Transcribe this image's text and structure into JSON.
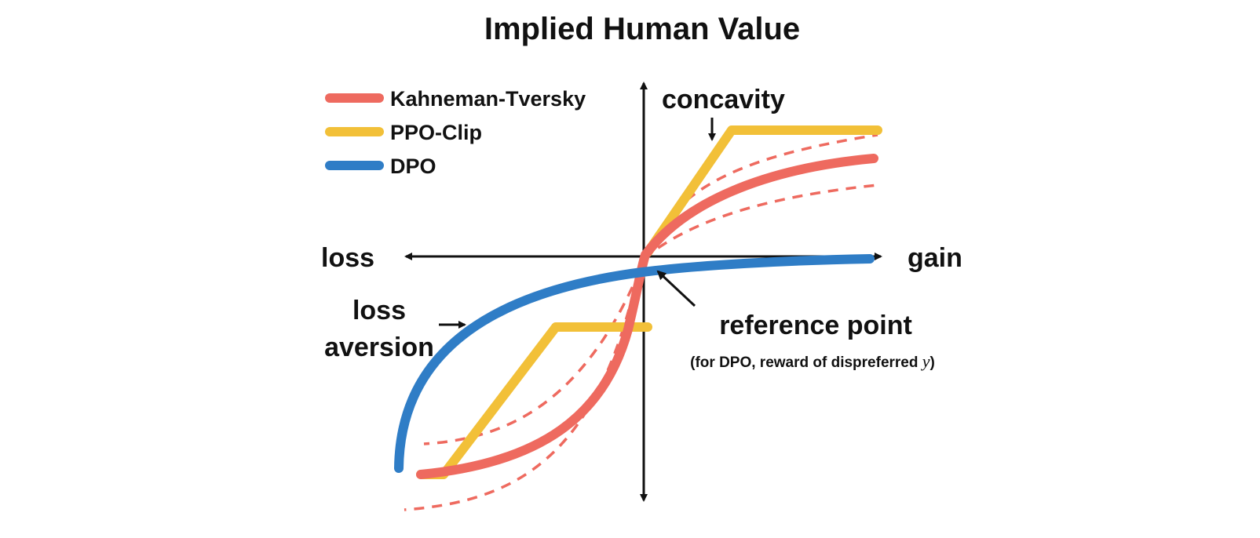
{
  "title": "Implied Human Value",
  "colors": {
    "kahneman_tversky": "#ee6a5f",
    "ppo_clip": "#f2c038",
    "dpo": "#2f7dc6",
    "axis": "#111111"
  },
  "legend": {
    "items": [
      {
        "label": "Kahneman-Tversky",
        "color_key": "kahneman_tversky"
      },
      {
        "label": "PPO-Clip",
        "color_key": "ppo_clip"
      },
      {
        "label": "DPO",
        "color_key": "dpo"
      }
    ]
  },
  "axes": {
    "left_label": "loss",
    "right_label": "gain"
  },
  "annotations": {
    "concavity": "concavity",
    "loss_aversion_line1": "loss",
    "loss_aversion_line2": "aversion",
    "reference_point": "reference point",
    "reference_note_prefix": "(for DPO, reward of dispreferred ",
    "reference_note_var": "y",
    "reference_note_suffix": ")"
  }
}
